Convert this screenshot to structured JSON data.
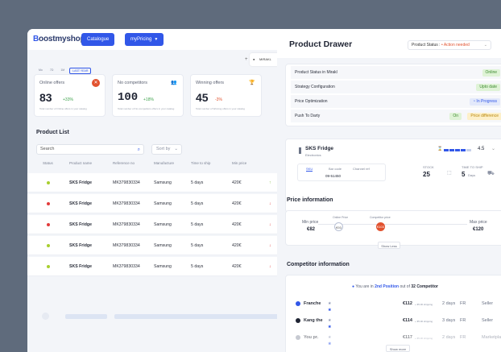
{
  "header": {
    "logo_pre": "B",
    "logo_brand": "oostmyshop",
    "catalogue": "Catalogue",
    "mypricing": "myPricing",
    "mirakl": "MIRAKL"
  },
  "period_tabs": [
    "Mo",
    "7D",
    "1M",
    "LAST YEAR"
  ],
  "kpis": [
    {
      "title": "Online offers",
      "value": "83",
      "delta": "+33%",
      "note": "Total number of Online offers in your catalog",
      "badge_color": "#e2522f"
    },
    {
      "title": "No competitors",
      "value": "100",
      "delta": "+18%",
      "note": "Total number of No competitors offers in your catalog",
      "badge_color": "#9b5de5"
    },
    {
      "title": "Winning offers",
      "value": "45",
      "delta": "-3%",
      "note": "Total number of Winning offers in your catalog",
      "badge_color": "#f2b705"
    }
  ],
  "product_list": {
    "title": "Product List",
    "search_placeholder": "Search",
    "sort_label": "Sort by",
    "columns": [
      "Status",
      "Product name",
      "Reference no",
      "Manufacture",
      "Time to ship",
      "Min price"
    ],
    "rows": [
      {
        "status": "#a8cf2f",
        "name": "SKS Fridge",
        "ref": "MK379830334",
        "manufacture": "Samsung",
        "ship": "5 days",
        "min": "420€",
        "trend": "↑",
        "trend_color": "#8ac24a"
      },
      {
        "status": "#e23b3b",
        "name": "SKS Fridge",
        "ref": "MK379830334",
        "manufacture": "Samsung",
        "ship": "5 days",
        "min": "420€",
        "trend": "↓",
        "trend_color": "#e23b3b"
      },
      {
        "status": "#e23b3b",
        "name": "SKS Fridge",
        "ref": "MK379830334",
        "manufacture": "Samsung",
        "ship": "5 days",
        "min": "420€",
        "trend": "↓",
        "trend_color": "#e23b3b"
      },
      {
        "status": "#a8cf2f",
        "name": "SKS Fridge",
        "ref": "MK379830334",
        "manufacture": "Samsung",
        "ship": "5 days",
        "min": "420€",
        "trend": "↓",
        "trend_color": "#e23b3b"
      },
      {
        "status": "#a8cf2f",
        "name": "SKS Fridge",
        "ref": "MK379830334",
        "manufacture": "Samsung",
        "ship": "5 days",
        "min": "420€",
        "trend": "↓",
        "trend_color": "#e23b3b"
      }
    ]
  },
  "drawer": {
    "title": "Product Drawer",
    "status_label": "Product Status :",
    "status_value": "• Action needed",
    "status_rows": [
      {
        "label": "Product Status in Mirakl",
        "value": "Online",
        "bg": "#dff3d6",
        "fg": "#3c8a2e"
      },
      {
        "label": "Strategy Configuration",
        "value": "Upto date",
        "bg": "#dff3d6",
        "fg": "#3c8a2e"
      },
      {
        "label": "Price Optimization",
        "value": "◔ In Progress",
        "bg": "#e3e9fb",
        "fg": "#3157e8"
      },
      {
        "label": "Push To Darty",
        "value": "On",
        "value2": "Price difference",
        "bg": "#dff3d6",
        "fg": "#3c8a2e",
        "bg2": "#fdf0c9",
        "fg2": "#b8860b"
      }
    ],
    "product": {
      "name": "SKS Fridge",
      "category": "Electronics",
      "rating": "4.5",
      "sub_tabs": [
        "SKU",
        "Bar code",
        "Channel ref"
      ],
      "sku_value": "09-51450",
      "stock_label": "STOCK",
      "stock_value": "25",
      "ship_label": "TIME TO SHIP",
      "ship_value": "5",
      "ship_unit": "Days"
    },
    "price_info": {
      "title": "Price information",
      "min_label": "Min price",
      "min_value": "€82",
      "online_label": "Online Price",
      "online_value": "€93",
      "competitor_label": "Competitor price",
      "competitor_value": "€103",
      "max_label": "Max price",
      "max_value": "€120",
      "show_less": "Show Less"
    },
    "competitor": {
      "title": "Competitor information",
      "position_prefix": "You are in",
      "position": "2nd Position",
      "position_mid": "out of",
      "total": "32 Competitor",
      "rows": [
        {
          "name": "Franche",
          "price": "€112",
          "ship_cost": "+ €5.00 shipping",
          "days": "2 days",
          "country": "FR",
          "type": "Seller",
          "icon": "#3157e8"
        },
        {
          "name": "Kang the",
          "price": "€114",
          "ship_cost": "+ €5.00 shipping",
          "days": "3 days",
          "country": "FR",
          "type": "Seller",
          "icon": "#1f2433"
        },
        {
          "name": "You pr.",
          "price": "€117",
          "ship_cost": "+ €5.00 shipping",
          "days": "2 days",
          "country": "FR",
          "type": "Marketplace",
          "icon": "#9aa0ae"
        }
      ],
      "show_more": "Show more"
    }
  }
}
